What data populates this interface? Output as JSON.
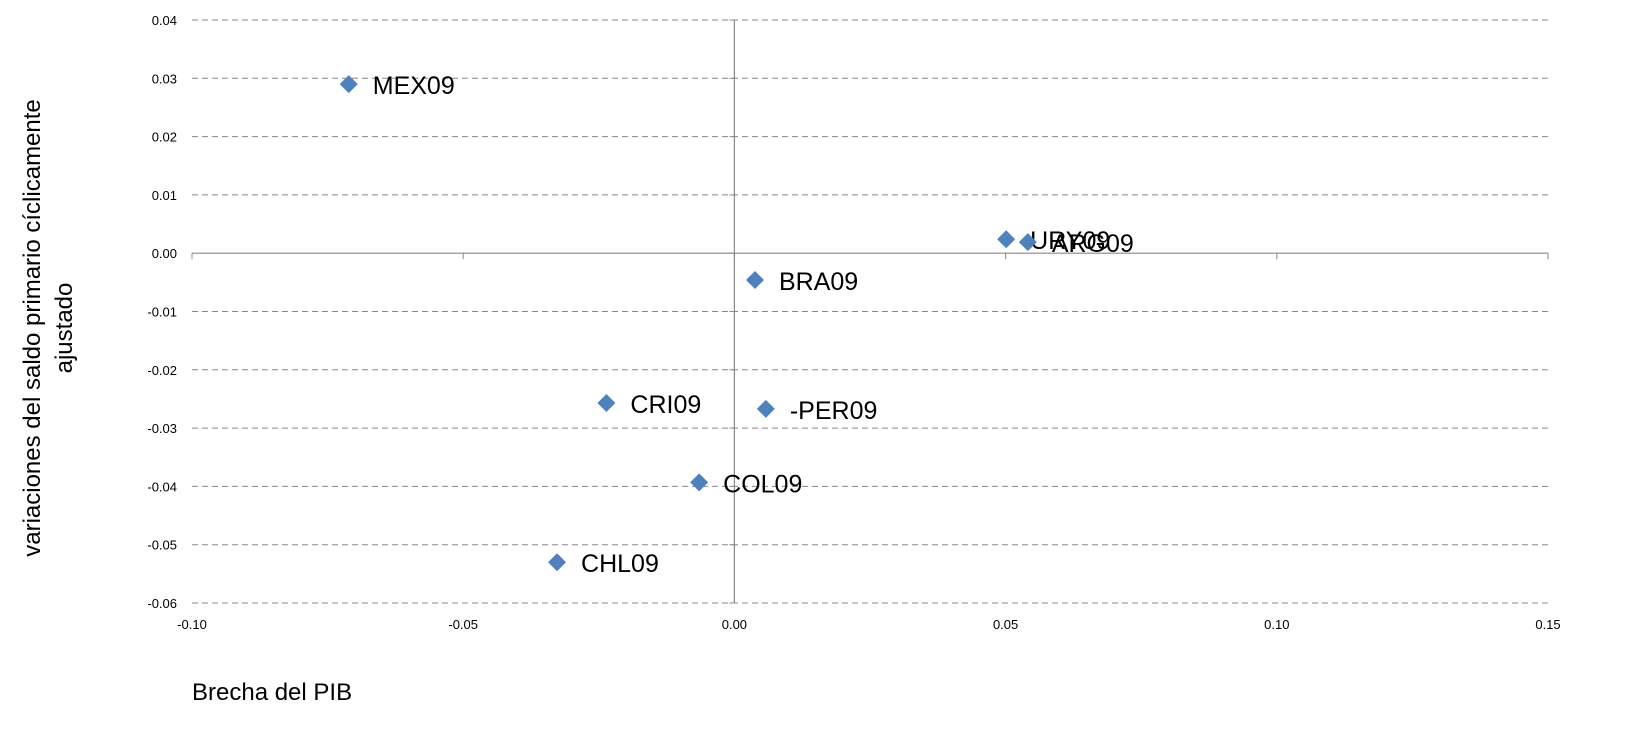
{
  "chart_data": {
    "type": "scatter",
    "xlabel": "Brecha del PIB",
    "ylabel": [
      "variaciones del saldo primario cíclicamente",
      "ajustado"
    ],
    "labels": [
      "MEX09",
      "URY09",
      "ARG09",
      "BRA09",
      "CRI09",
      "-PER09",
      "COL09",
      "CHL09"
    ],
    "x": [
      -0.0711,
      0.0501,
      0.0541,
      0.0038,
      -0.0236,
      0.0058,
      -0.0065,
      -0.0327
    ],
    "values": [
      0.029,
      0.0024,
      0.0019,
      -0.0046,
      -0.0257,
      -0.0267,
      -0.0393,
      -0.053
    ],
    "color": "#4f81bd",
    "xlim": [
      -0.1,
      0.15
    ],
    "xticks": [
      {
        "value": -0.1,
        "label": "-0.10"
      },
      -0.05,
      {
        "value": 0,
        "label": "0.00"
      },
      0.05,
      {
        "value": 0.1,
        "label": "0.10"
      },
      0.15
    ],
    "ylim": [
      -0.06,
      0.04
    ],
    "yticks": [
      0.04,
      0.03,
      0.02,
      0.01,
      {
        "value": 0,
        "label": "0.00"
      },
      -0.01,
      -0.02,
      -0.03,
      -0.04,
      -0.05,
      -0.06
    ],
    "grid": true
  }
}
